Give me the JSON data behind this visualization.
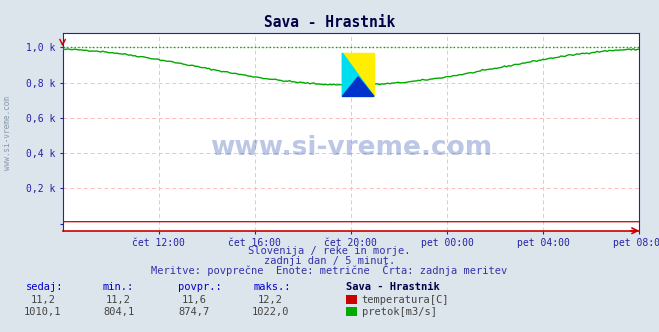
{
  "title": "Sava - Hrastnik",
  "bg_color": "#dce4ec",
  "plot_bg_color": "#ffffff",
  "grid_color": "#ffbbbb",
  "x_labels": [
    "čet 12:00",
    "čet 16:00",
    "čet 20:00",
    "pet 00:00",
    "pet 04:00",
    "pet 08:00"
  ],
  "y_tick_labels": [
    "",
    "0,2 k",
    "0,4 k",
    "0,6 k",
    "0,8 k",
    "1,0 k"
  ],
  "ymax": 1.08,
  "ymin": -0.04,
  "temperature_color": "#cc0000",
  "flow_color": "#00aa00",
  "flow_max": 1022.0,
  "flow_min": 804.1,
  "flow_povpr": 874.7,
  "flow_sedaj": 1010.1,
  "temp_max": 12.2,
  "temp_min": 11.2,
  "temp_povpr": 11.6,
  "temp_sedaj": 11.2,
  "subtitle1": "Slovenija / reke in morje.",
  "subtitle2": "zadnji dan / 5 minut.",
  "subtitle3": "Meritve: povprečne  Enote: metrične  Črta: zadnja meritev",
  "legend_title": "Sava - Hrastnik",
  "watermark": "www.si-vreme.com",
  "axis_label_color": "#2222aa",
  "text_color": "#3333aa",
  "header_color": "#0000cc",
  "value_color": "#444444",
  "side_label_color": "#8899aa"
}
